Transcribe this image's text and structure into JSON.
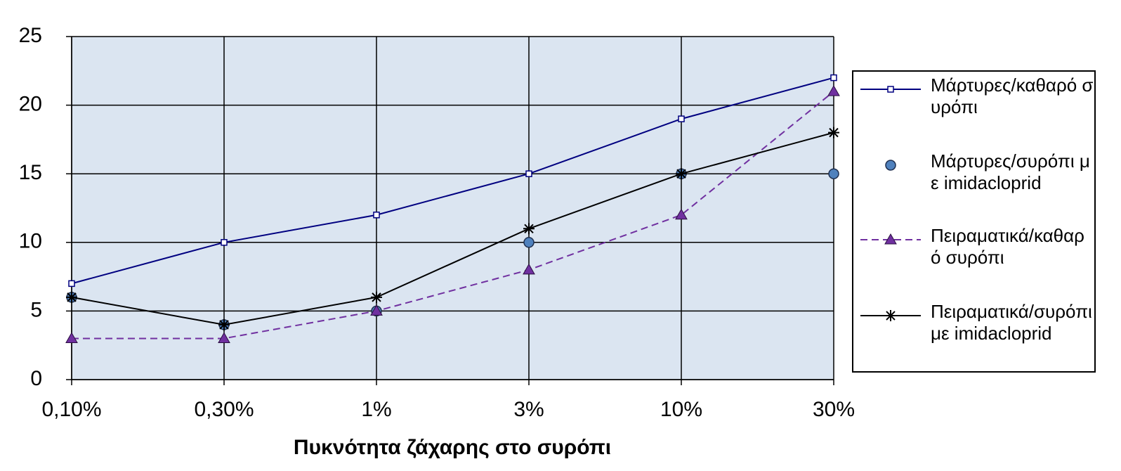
{
  "chart_data": {
    "type": "line",
    "xlabel": "Πυκνότητα ζάχαρης στο συρόπι",
    "categories": [
      "0,10%",
      "0,30%",
      "1%",
      "3%",
      "10%",
      "30%"
    ],
    "series": [
      {
        "name": "Μάρτυρες/καθαρό συρόπι",
        "color": "#000080",
        "line_style": "solid",
        "marker": "square",
        "values": [
          7,
          10,
          12,
          15,
          19,
          22
        ]
      },
      {
        "name": "Μάρτυρες/συρόπι με imidacloprid",
        "color": "#4f81bd",
        "line_style": "none",
        "marker": "circle",
        "values": [
          6,
          4,
          5,
          10,
          15,
          15
        ]
      },
      {
        "name": "Πειραματικά/καθαρό συρόπι",
        "color": "#7030a0",
        "line_style": "dashed",
        "marker": "triangle",
        "values": [
          3,
          3,
          5,
          8,
          12,
          21
        ]
      },
      {
        "name": "Πειραματικά/συρόπι με imidacloprid",
        "color": "#000000",
        "line_style": "solid",
        "marker": "asterisk",
        "values": [
          6,
          4,
          6,
          11,
          15,
          18
        ]
      }
    ],
    "ylim": [
      0,
      25
    ],
    "yticks": [
      0,
      5,
      10,
      15,
      20,
      25
    ],
    "grid": true,
    "legend": "right"
  }
}
